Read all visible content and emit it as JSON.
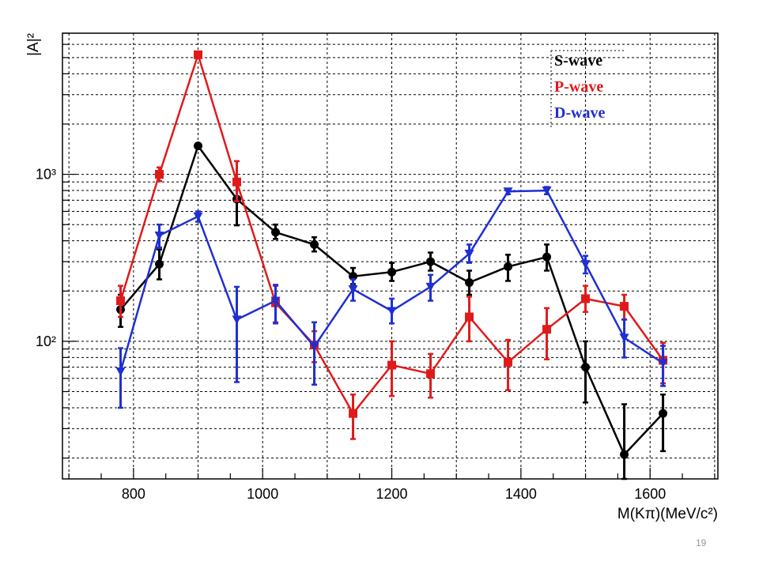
{
  "slide": {
    "page_number": "19"
  },
  "chart_data": {
    "type": "line",
    "xlabel": "M(Kπ)(MeV/c²)",
    "ylabel": "|A|²",
    "yscale": "log",
    "xlim": [
      690,
      1705
    ],
    "ylim": [
      15,
      7000
    ],
    "x_ticks": [
      800,
      1000,
      1200,
      1400,
      1600
    ],
    "y_tick_labels": [
      "10²",
      "10³"
    ],
    "grid": true,
    "legend_position": "top-right",
    "x": [
      780,
      840,
      900,
      960,
      1020,
      1080,
      1140,
      1200,
      1260,
      1320,
      1380,
      1440,
      1500,
      1560,
      1620
    ],
    "series": [
      {
        "name": "S-wave",
        "color": "#000000",
        "marker": "circle",
        "values": [
          155,
          290,
          1480,
          710,
          450,
          380,
          245,
          260,
          300,
          225,
          280,
          320,
          70,
          21,
          37
        ],
        "err_low": [
          122,
          235,
          1480,
          495,
          410,
          345,
          220,
          230,
          265,
          190,
          230,
          265,
          43,
          15,
          22
        ],
        "err_high": [
          190,
          355,
          1480,
          930,
          500,
          420,
          275,
          295,
          340,
          265,
          330,
          380,
          100,
          42,
          48
        ]
      },
      {
        "name": "P-wave",
        "color": "#e01a1a",
        "marker": "square",
        "values": [
          175,
          1000,
          5200,
          900,
          170,
          95,
          37,
          72,
          64,
          140,
          75,
          118,
          180,
          162,
          77
        ],
        "err_low": [
          140,
          910,
          5200,
          690,
          130,
          75,
          26,
          47,
          46,
          100,
          51,
          78,
          150,
          135,
          56
        ],
        "err_high": [
          215,
          1100,
          5200,
          1200,
          215,
          115,
          48,
          100,
          84,
          185,
          102,
          158,
          215,
          190,
          98
        ]
      },
      {
        "name": "D-wave",
        "color": "#1f2fd1",
        "marker": "triangle-down",
        "values": [
          66,
          430,
          560,
          135,
          175,
          93,
          205,
          152,
          212,
          335,
          790,
          800,
          290,
          105,
          74
        ],
        "err_low": [
          40,
          365,
          520,
          57,
          128,
          55,
          175,
          128,
          175,
          295,
          760,
          760,
          255,
          80,
          54
        ],
        "err_high": [
          91,
          500,
          600,
          212,
          218,
          130,
          235,
          180,
          250,
          380,
          820,
          840,
          325,
          135,
          94
        ]
      }
    ]
  }
}
